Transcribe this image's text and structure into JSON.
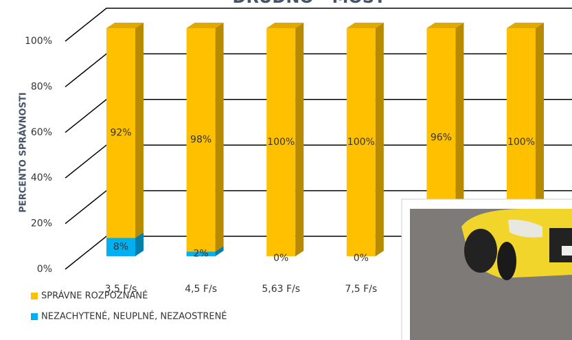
{
  "chart_data": {
    "type": "bar",
    "stacked": true,
    "title": "DRUDNO - MOST",
    "ylabel": "PERCENTO SPRÁVNOSTI",
    "categories": [
      "3,5 F/s",
      "4,5 F/s",
      "5,63 F/s",
      "7,5 F/s",
      null,
      null
    ],
    "series": [
      {
        "name": "NEZACHYTENÉ, NEUPLNÉ, NEZAOSTRENÉ",
        "color": "#00B0F0",
        "values": [
          8,
          2,
          0,
          0,
          4,
          0
        ],
        "value_labels": [
          "8%",
          "2%",
          "0%",
          "0%",
          null,
          null
        ]
      },
      {
        "name": "SPRÁVNE ROZPOZNANÉ",
        "color": "#FFC000",
        "values": [
          92,
          98,
          100,
          100,
          96,
          100
        ],
        "value_labels": [
          "92%",
          "98%",
          "100%",
          "100%",
          "96%",
          "100%"
        ]
      }
    ],
    "ylim": [
      0,
      100
    ],
    "yticks": [
      {
        "value": 0,
        "label": "0%"
      },
      {
        "value": 20,
        "label": "20%"
      },
      {
        "value": 40,
        "label": "40%"
      },
      {
        "value": 60,
        "label": "60%"
      },
      {
        "value": 80,
        "label": "80%"
      },
      {
        "value": 100,
        "label": "100%"
      }
    ],
    "grid": true,
    "legend": "bottom-left"
  }
}
